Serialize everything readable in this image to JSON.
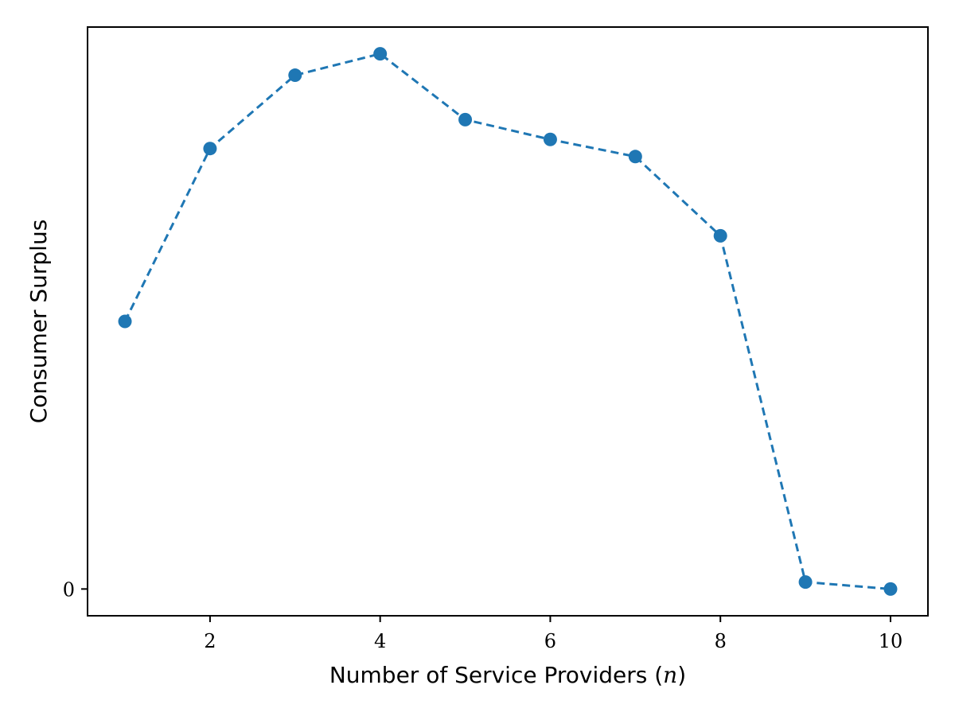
{
  "chart_data": {
    "type": "line",
    "x": [
      1,
      2,
      3,
      4,
      5,
      6,
      7,
      8,
      9,
      10
    ],
    "series": [
      {
        "values": [
          0.5,
          0.823,
          0.96,
          1.0,
          0.877,
          0.84,
          0.808,
          0.66,
          0.013,
          0.0
        ],
        "line_style": "dashed",
        "marker": "circle",
        "color": "#1f77b4"
      }
    ],
    "xlabel_prefix": "Number of Service Providers (",
    "xlabel_var": "n",
    "xlabel_suffix": ")",
    "ylabel": "Consumer Surplus",
    "xticks": [
      2,
      4,
      6,
      8,
      10
    ],
    "yticks": [
      0
    ],
    "xlim": [
      0.56,
      10.44
    ],
    "ylim": [
      -0.05,
      1.05
    ],
    "grid": false,
    "legend": "none"
  }
}
